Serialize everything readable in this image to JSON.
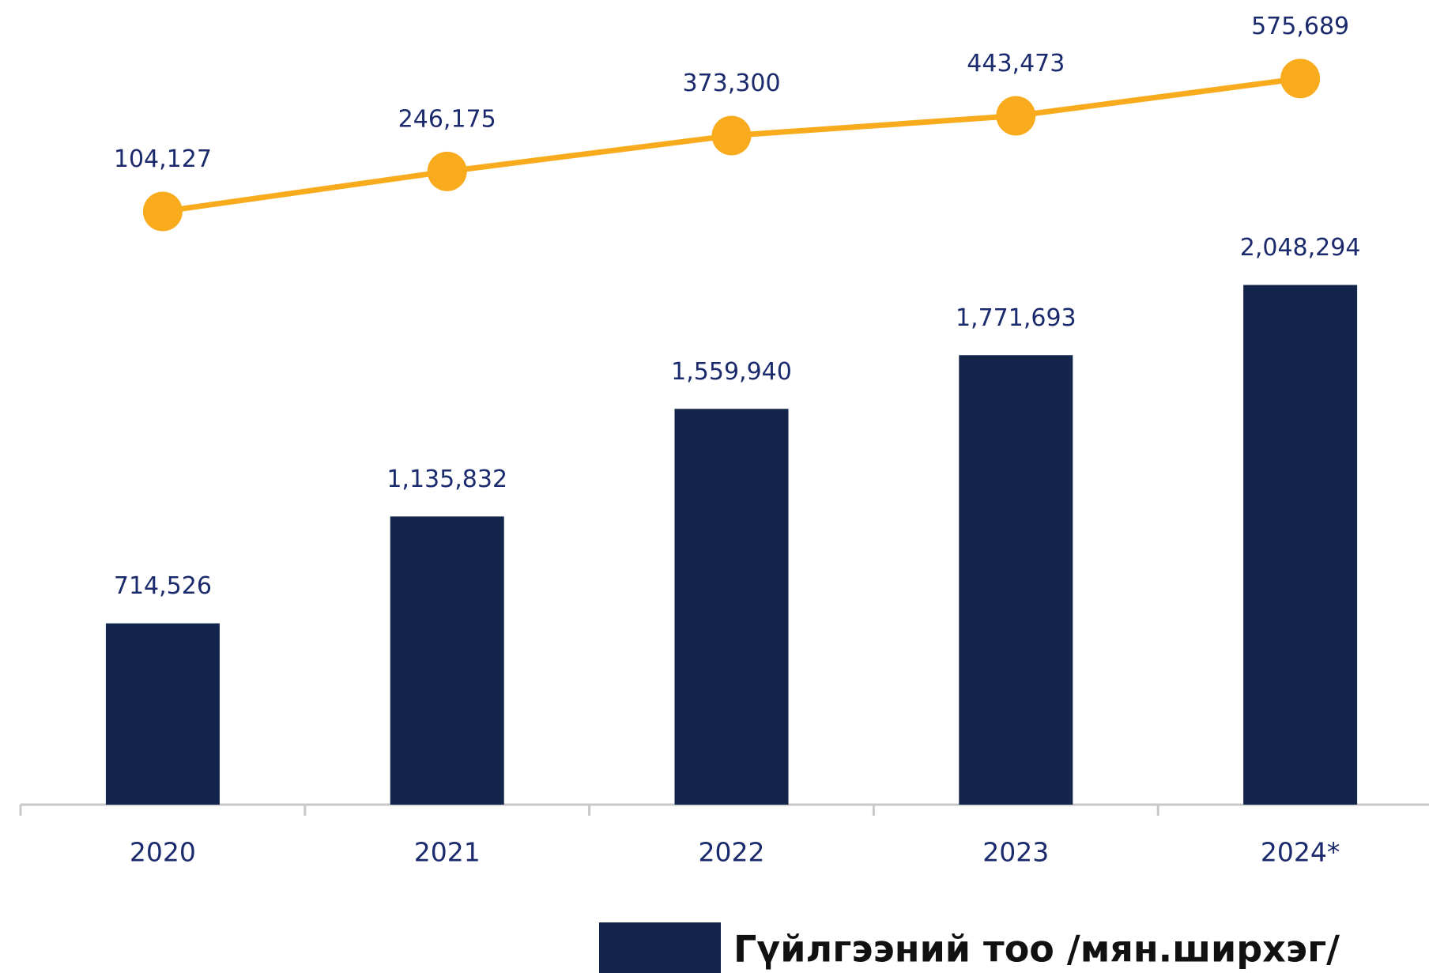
{
  "chart_data": {
    "type": "bar",
    "categories": [
      "2020",
      "2021",
      "2022",
      "2023",
      "2024*"
    ],
    "series": [
      {
        "name": "Гүйлгээний тоо /мян.ширхэг/",
        "type": "bar",
        "color": "#13254a",
        "values": [
          714526,
          1135832,
          1559940,
          1771693,
          2048294
        ],
        "value_labels": [
          "714,526",
          "1,135,832",
          "1,559,940",
          "1,771,693",
          "2,048,294"
        ]
      },
      {
        "type": "line",
        "axis": "y2",
        "color": "#f9ab1e",
        "values": [
          104127,
          246175,
          373300,
          443473,
          575689
        ],
        "value_labels": [
          "104,127",
          "246,175",
          "373,300",
          "443,473",
          "575,689"
        ]
      }
    ],
    "ylim": [
      0,
      3000000
    ],
    "y2lim": [
      -2000000,
      700000
    ],
    "legend": "bottom"
  }
}
